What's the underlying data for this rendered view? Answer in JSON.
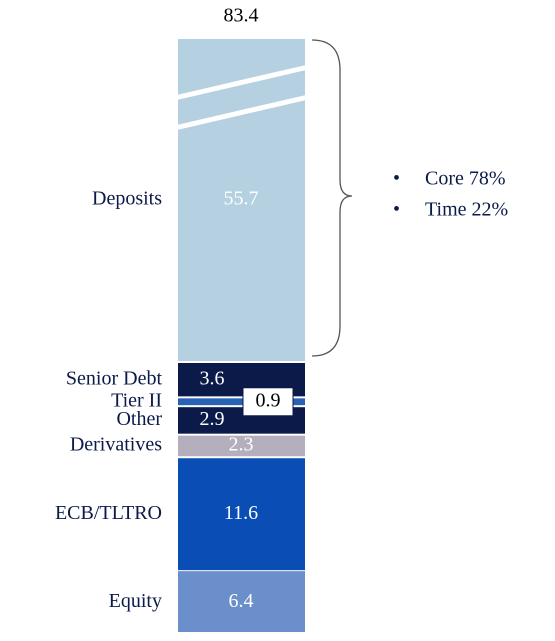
{
  "chart_data": {
    "type": "stacked-bar",
    "total": 83.4,
    "series": [
      {
        "name": "Equity",
        "color": "#6b8fca",
        "values": [
          6.4
        ]
      },
      {
        "name": "ECB/TLTRO",
        "color": "#0a4db5",
        "values": [
          11.6
        ]
      },
      {
        "name": "Derivatives",
        "color": "#b3afbd",
        "values": [
          2.3
        ]
      },
      {
        "name": "Other",
        "color": "#0b1a48",
        "values": [
          2.9
        ]
      },
      {
        "name": "Tier II",
        "color": "#2a62b3",
        "values": [
          0.9
        ]
      },
      {
        "name": "Senior Debt",
        "color": "#0b1a48",
        "values": [
          3.6
        ]
      },
      {
        "name": "Deposits",
        "color": "#b4d0e1",
        "values": [
          55.7
        ]
      }
    ],
    "annotations": [
      "Core 78%",
      "Time 22%"
    ]
  }
}
